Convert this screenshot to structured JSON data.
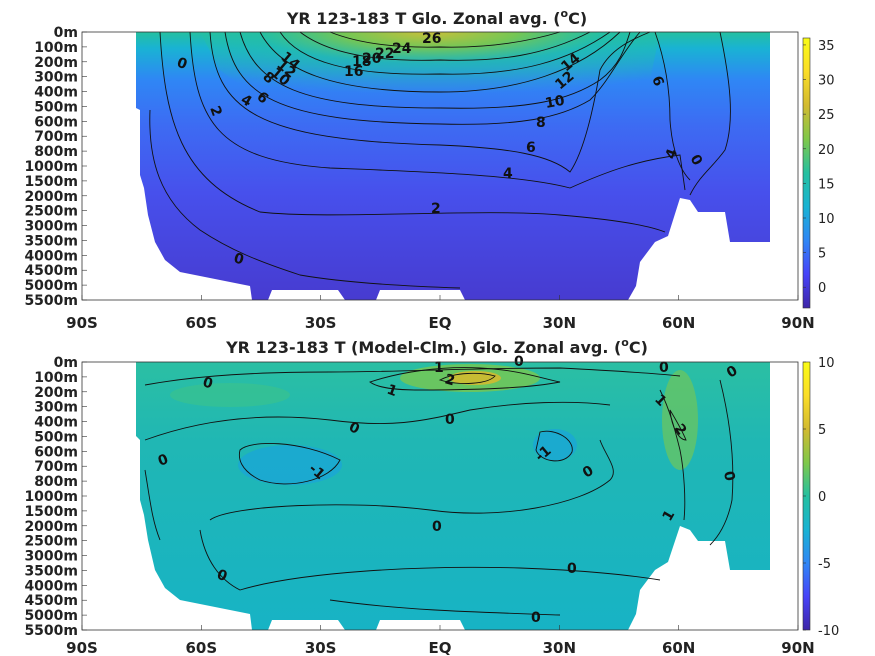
{
  "chart_data": [
    {
      "type": "heatmap",
      "title": "YR 123-183 T Glo. Zonal avg. (",
      "title_unit": "C)",
      "title_sup": "o",
      "x_ticks": [
        "90S",
        "60S",
        "30S",
        "EQ",
        "30N",
        "60N",
        "90N"
      ],
      "x_values": [
        -90,
        -60,
        -30,
        0,
        30,
        60,
        90
      ],
      "y_ticks": [
        "0m",
        "100m",
        "200m",
        "300m",
        "400m",
        "500m",
        "600m",
        "700m",
        "800m",
        "1000m",
        "1500m",
        "2000m",
        "2500m",
        "3000m",
        "3500m",
        "4000m",
        "4500m",
        "5000m",
        "5500m"
      ],
      "colorbar_ticks": [
        "35",
        "30",
        "25",
        "20",
        "15",
        "10",
        "5",
        "0"
      ],
      "colorbar_values": [
        35,
        30,
        25,
        20,
        15,
        10,
        5,
        0
      ],
      "colorbar_range": [
        -3,
        36
      ],
      "contour_labels": [
        "26",
        "24",
        "22",
        "20",
        "18",
        "16",
        "14",
        "12",
        "10",
        "8",
        "6",
        "4",
        "2",
        "0",
        "14",
        "12",
        "10",
        "8",
        "6",
        "4",
        "2",
        "0",
        "6",
        "4",
        "0"
      ],
      "colormap": [
        "#3e26a8",
        "#4743f8",
        "#2f86f5",
        "#19b3d3",
        "#25c0a0",
        "#7fc84a",
        "#d2ba30",
        "#fadd28",
        "#f9fb15"
      ]
    },
    {
      "type": "heatmap",
      "title": "YR 123-183 T (Model-Clm.) Glo. Zonal avg. (",
      "title_unit": "C)",
      "title_sup": "o",
      "x_ticks": [
        "90S",
        "60S",
        "30S",
        "EQ",
        "30N",
        "60N",
        "90N"
      ],
      "x_values": [
        -90,
        -60,
        -30,
        0,
        30,
        60,
        90
      ],
      "y_ticks": [
        "0m",
        "100m",
        "200m",
        "300m",
        "400m",
        "500m",
        "600m",
        "700m",
        "800m",
        "1000m",
        "1500m",
        "2000m",
        "2500m",
        "3000m",
        "3500m",
        "4000m",
        "4500m",
        "5000m",
        "5500m"
      ],
      "colorbar_ticks": [
        "10",
        "5",
        "0",
        "-5",
        "-10"
      ],
      "colorbar_values": [
        10,
        5,
        0,
        -5,
        -10
      ],
      "colorbar_range": [
        -10,
        10
      ],
      "contour_labels": [
        "1",
        "2",
        "0",
        "0",
        "1",
        "0",
        "0",
        "-1",
        "0",
        "-1",
        "0",
        "0",
        "1",
        "2",
        "0",
        "0",
        "1",
        "0",
        "0",
        "0",
        "0"
      ],
      "colormap": [
        "#3e26a8",
        "#4743f8",
        "#2f86f5",
        "#19b3d3",
        "#25c0a0",
        "#7fc84a",
        "#d2ba30",
        "#fadd28",
        "#f9fb15"
      ]
    }
  ]
}
